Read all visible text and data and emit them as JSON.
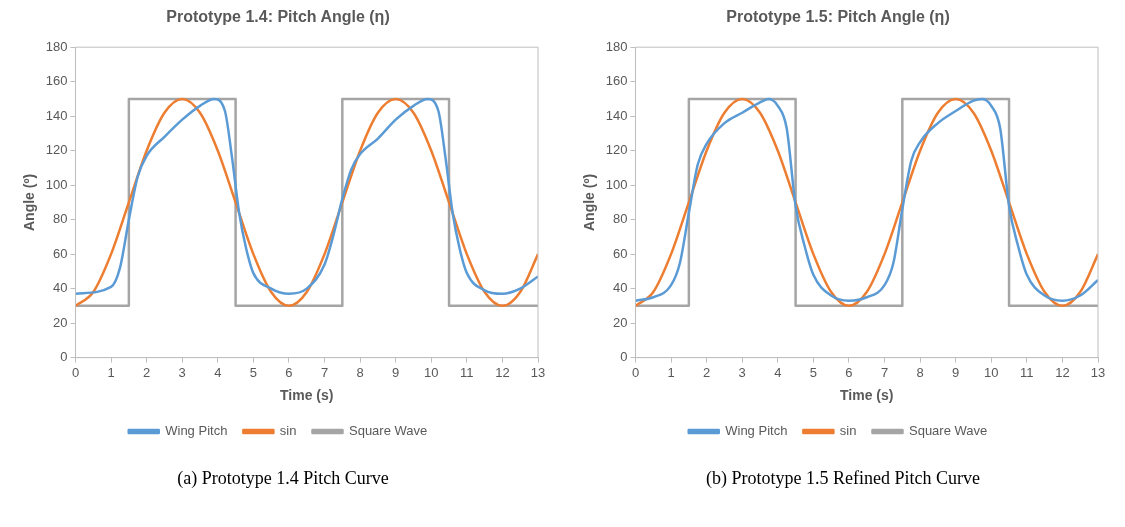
{
  "chart_data": [
    {
      "type": "line",
      "title": "Prototype 1.4: Pitch Angle (η)",
      "xlabel": "Time (s)",
      "ylabel": "Angle (º)",
      "xlim": [
        0,
        13
      ],
      "xticks": [
        0,
        1,
        2,
        3,
        4,
        5,
        6,
        7,
        8,
        9,
        10,
        11,
        12,
        13
      ],
      "ylim": [
        0,
        180
      ],
      "yticks": [
        0,
        20,
        40,
        60,
        80,
        100,
        120,
        140,
        160,
        180
      ],
      "grid": false,
      "legend": "bottom",
      "marker": "none",
      "line_style": "solid",
      "annotations": [
        "(a) Prototype 1.4 Pitch Curve"
      ],
      "series": [
        {
          "name": "Wing Pitch",
          "color": "#5b9bd5",
          "x": [
            0,
            1,
            1.25,
            1.5,
            1.75,
            2,
            2.5,
            3,
            3.5,
            3.9,
            4.2,
            4.4,
            4.6,
            4.8,
            5,
            5.5,
            6,
            6.5,
            7,
            7.25,
            7.5,
            7.75,
            8,
            8.5,
            9,
            9.5,
            9.9,
            10.2,
            10.4,
            10.6,
            10.8,
            11,
            11.5,
            12,
            12.5,
            13
          ],
          "values": [
            37,
            41,
            52,
            80,
            105,
            117,
            128,
            138,
            146,
            150,
            143,
            116,
            84,
            63,
            49,
            40,
            37,
            40,
            54,
            71,
            92,
            109,
            118,
            127,
            138,
            146,
            150,
            143,
            116,
            84,
            63,
            49,
            39,
            37,
            40,
            47
          ]
        },
        {
          "name": "sin",
          "color": "#ed7d31",
          "x": [
            0,
            0.5,
            1,
            1.5,
            2,
            2.5,
            3,
            3.5,
            4,
            4.5,
            5,
            5.5,
            6,
            6.5,
            7,
            7.5,
            8,
            8.5,
            9,
            9.5,
            10,
            10.5,
            11,
            11.5,
            12,
            12.5,
            13
          ],
          "values": [
            30,
            38,
            60,
            90,
            120,
            142,
            150,
            142,
            120,
            90,
            60,
            38,
            30,
            38,
            60,
            90,
            120,
            142,
            150,
            142,
            120,
            90,
            60,
            38,
            30,
            38,
            60
          ]
        },
        {
          "name": "Square Wave",
          "color": "#a5a5a5",
          "x": [
            0,
            1.5,
            1.5,
            4.5,
            4.5,
            7.5,
            7.5,
            10.5,
            10.5,
            13
          ],
          "values": [
            30,
            30,
            150,
            150,
            30,
            30,
            150,
            150,
            30,
            30
          ]
        }
      ]
    },
    {
      "type": "line",
      "title": "Prototype 1.5: Pitch Angle (η)",
      "xlabel": "Time (s)",
      "ylabel": "Angle (º)",
      "xlim": [
        0,
        13
      ],
      "xticks": [
        0,
        1,
        2,
        3,
        4,
        5,
        6,
        7,
        8,
        9,
        10,
        11,
        12,
        13
      ],
      "ylim": [
        0,
        180
      ],
      "yticks": [
        0,
        20,
        40,
        60,
        80,
        100,
        120,
        140,
        160,
        180
      ],
      "grid": false,
      "legend": "bottom",
      "marker": "none",
      "line_style": "solid",
      "annotations": [
        "(b) Prototype 1.5 Refined Pitch Curve"
      ],
      "series": [
        {
          "name": "Wing Pitch",
          "color": "#5b9bd5",
          "x": [
            0,
            0.5,
            1,
            1.25,
            1.5,
            1.75,
            2,
            2.5,
            3,
            3.5,
            3.75,
            4,
            4.25,
            4.5,
            4.75,
            5,
            5.5,
            6,
            6.5,
            7,
            7.25,
            7.5,
            7.75,
            8,
            8.5,
            9,
            9.5,
            9.75,
            10,
            10.25,
            10.5,
            10.75,
            11,
            11.5,
            12,
            12.5,
            13
          ],
          "values": [
            33,
            35,
            42,
            55,
            84,
            112,
            124,
            136,
            142,
            148,
            150,
            146,
            133,
            88,
            65,
            48,
            36,
            33,
            35,
            42,
            55,
            86,
            114,
            125,
            136,
            143,
            149,
            150,
            146,
            133,
            88,
            65,
            48,
            36,
            33,
            36,
            45
          ]
        },
        {
          "name": "sin",
          "color": "#ed7d31",
          "x": [
            0,
            0.5,
            1,
            1.5,
            2,
            2.5,
            3,
            3.5,
            4,
            4.5,
            5,
            5.5,
            6,
            6.5,
            7,
            7.5,
            8,
            8.5,
            9,
            9.5,
            10,
            10.5,
            11,
            11.5,
            12,
            12.5,
            13
          ],
          "values": [
            30,
            38,
            60,
            90,
            120,
            142,
            150,
            142,
            120,
            90,
            60,
            38,
            30,
            38,
            60,
            90,
            120,
            142,
            150,
            142,
            120,
            90,
            60,
            38,
            30,
            38,
            60
          ]
        },
        {
          "name": "Square Wave",
          "color": "#a5a5a5",
          "x": [
            0,
            1.5,
            1.5,
            4.5,
            4.5,
            7.5,
            7.5,
            10.5,
            10.5,
            13
          ],
          "values": [
            30,
            30,
            150,
            150,
            30,
            30,
            150,
            150,
            30,
            30
          ]
        }
      ]
    }
  ]
}
